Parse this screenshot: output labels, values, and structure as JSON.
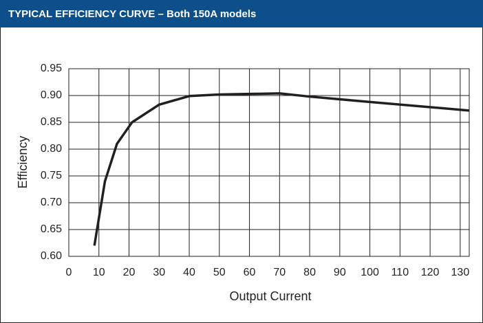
{
  "chart_data": {
    "type": "line",
    "title": "TYPICAL EFFICIENCY CURVE – Both 150A models",
    "x_label": "Output Current",
    "y_label": "Efficiency",
    "series": [
      {
        "name": "Efficiency",
        "color": "#231f20",
        "x": [
          8.5,
          12,
          16,
          21,
          30,
          40,
          50,
          60,
          70,
          80,
          100,
          133
        ],
        "values": [
          0.62,
          0.74,
          0.81,
          0.85,
          0.883,
          0.899,
          0.902,
          0.903,
          0.904,
          0.898,
          0.888,
          0.872
        ]
      }
    ],
    "xlim": [
      0,
      133
    ],
    "xticks": [
      0,
      10,
      20,
      30,
      40,
      50,
      60,
      70,
      80,
      90,
      100,
      110,
      120,
      130
    ],
    "ylim": [
      0.6,
      0.95
    ],
    "yticks": [
      {
        "value": 0.6,
        "label": "0.60"
      },
      0.65,
      {
        "value": 0.7,
        "label": "0.70"
      },
      0.75,
      {
        "value": 0.8,
        "label": "0.80"
      },
      0.85,
      {
        "value": 0.9,
        "label": "0.90"
      },
      0.95
    ],
    "grid": true
  }
}
